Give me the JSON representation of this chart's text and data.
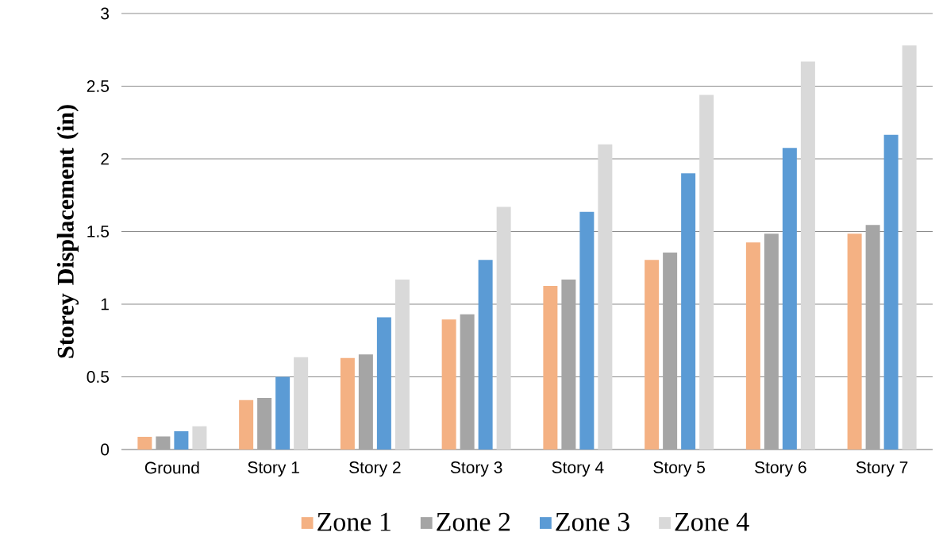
{
  "chart_data": {
    "type": "bar",
    "ylabel": "Storey Displacement (in)",
    "categories": [
      "Ground",
      "Story 1",
      "Story 2",
      "Story 3",
      "Story 4",
      "Story 5",
      "Story 6",
      "Story 7"
    ],
    "series": [
      {
        "name": "Zone 1",
        "color": "#f4b183",
        "values": [
          0.087,
          0.34,
          0.63,
          0.895,
          1.125,
          1.305,
          1.425,
          1.485
        ]
      },
      {
        "name": "Zone 2",
        "color": "#a5a5a5",
        "values": [
          0.09,
          0.355,
          0.655,
          0.93,
          1.17,
          1.355,
          1.485,
          1.545
        ]
      },
      {
        "name": "Zone 3",
        "color": "#5b9bd5",
        "values": [
          0.125,
          0.5,
          0.91,
          1.305,
          1.635,
          1.9,
          2.075,
          2.165
        ]
      },
      {
        "name": "Zone 4",
        "color": "#d9d9d9",
        "values": [
          0.16,
          0.635,
          1.17,
          1.67,
          2.1,
          2.44,
          2.67,
          2.78
        ]
      }
    ],
    "ylim": [
      0,
      3
    ],
    "yticks": [
      0,
      0.5,
      1,
      1.5,
      2,
      2.5,
      3
    ],
    "grid": "y",
    "legend": "bottom"
  }
}
